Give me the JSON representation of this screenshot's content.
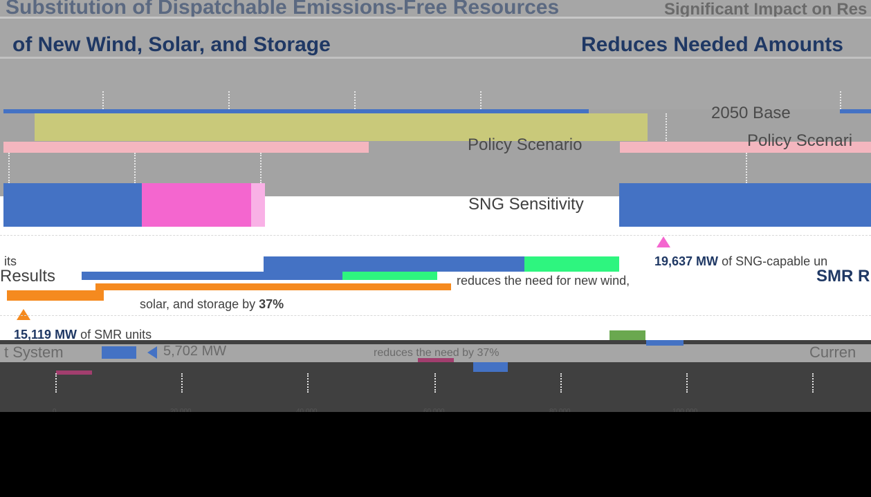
{
  "slide": {
    "title_line_1": "Substitution of Dispatchable Emissions-Free Resources",
    "title_line_2": "of New Wind, Solar, and Storage",
    "title_right": "Reduces Needed Amounts",
    "header_right": "Significant Impact on Res"
  },
  "chart_data": {
    "type": "bar",
    "categories": [
      "2050 Base Policy Scenario",
      "SNG Sensitivity",
      "SMR Results",
      "Current System"
    ],
    "series_colors": {
      "wind": "#4472c4",
      "solar": "#c9c97a",
      "storage": "#f4b6bf",
      "sng": "#f466cf",
      "sng_light": "#f9b1e6",
      "offshore": "#2ef57f",
      "smr": "#f58a1f",
      "other_green": "#6aa84f",
      "maroon": "#a23e6e"
    },
    "axis": {
      "tick_labels": [
        "0",
        "20,000",
        "40,000",
        "60,000",
        "80,000",
        "100,000"
      ]
    }
  },
  "labels": {
    "base_scenario_left": "2050 Base",
    "base_scenario_right": "2050 Base",
    "policy_scenario": "Policy Scenario",
    "policy_scenario_right": "Policy Scenari",
    "sng_sensitivity": "SNG Sensitivity",
    "results_left": "its",
    "results_heading": "Results",
    "smr_right": "SMR R",
    "sng_units_value": "19,637 MW",
    "sng_units_text": "of SNG-capable un",
    "smr_reduces_line1": "reduces the need for new wind,",
    "smr_reduces_line2_prefix": "solar, and storage by ",
    "smr_reduces_pct": "37%",
    "smr_units_value": "15,119 MW",
    "smr_units_text": "of SMR units",
    "current_system": "t System",
    "current_right": "Curren",
    "mw_value": "5,702 MW",
    "reduces_short": "reduces the need by 37%"
  }
}
